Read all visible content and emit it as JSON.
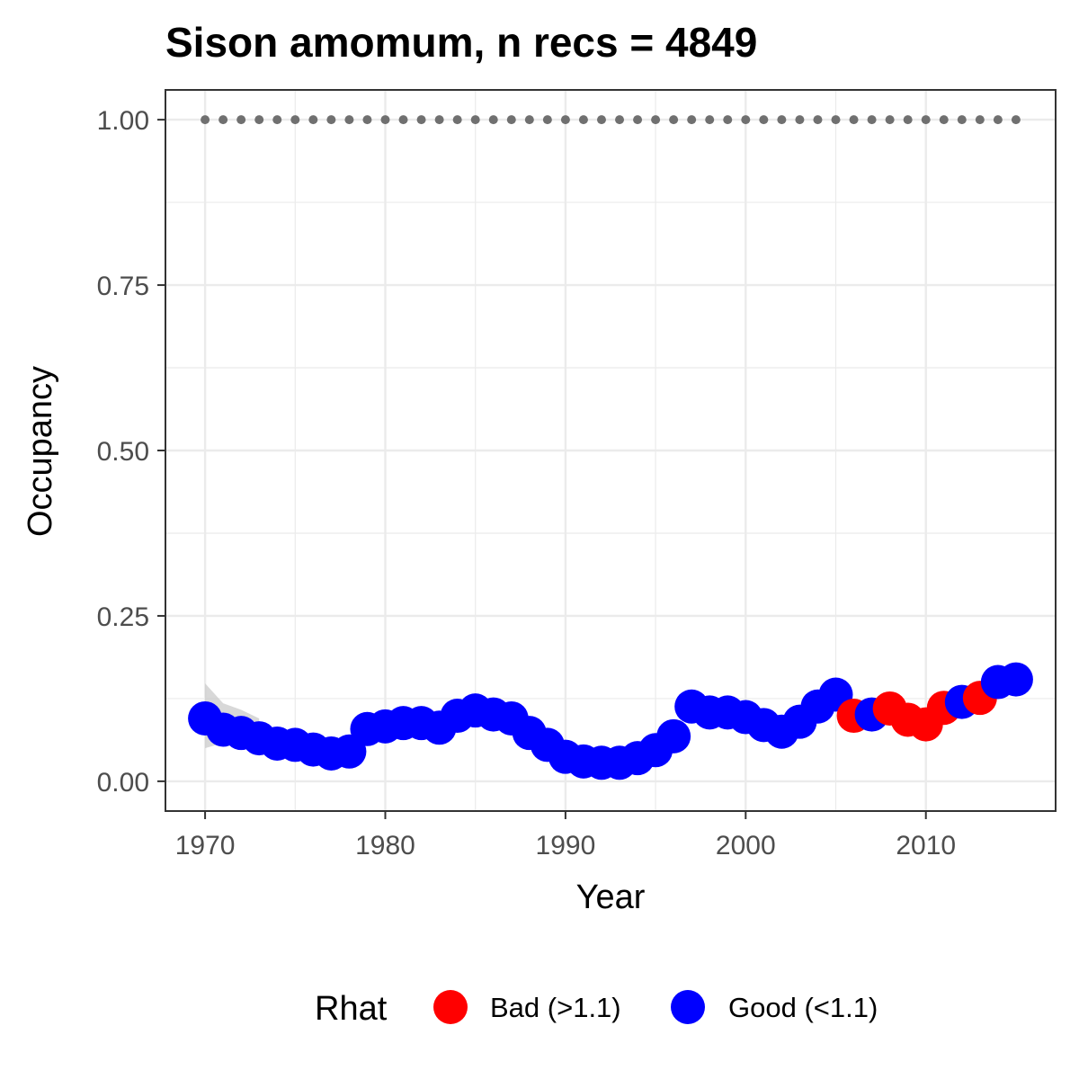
{
  "chart_data": {
    "type": "scatter",
    "title": "Sison amomum, n recs = 4849",
    "xlabel": "Year",
    "ylabel": "Occupancy",
    "xlim": [
      1967.8,
      2017.2
    ],
    "ylim": [
      -0.045,
      1.045
    ],
    "x_ticks": [
      1970,
      1980,
      1990,
      2000,
      2010
    ],
    "y_ticks": [
      0.0,
      0.25,
      0.5,
      0.75,
      1.0
    ],
    "y_tick_labels": [
      "0.00",
      "0.25",
      "0.50",
      "0.75",
      "1.00"
    ],
    "grid": true,
    "colors": {
      "bad": "#ff0000",
      "good": "#0000ff",
      "reference": "#707070",
      "ribbon": "#c8c8c8",
      "panel_border": "#333333",
      "grid": "#ebebeb"
    },
    "reference_line": {
      "y": 1.0,
      "style": "dotted",
      "x": [
        1970,
        1971,
        1972,
        1973,
        1974,
        1975,
        1976,
        1977,
        1978,
        1979,
        1980,
        1981,
        1982,
        1983,
        1984,
        1985,
        1986,
        1987,
        1988,
        1989,
        1990,
        1991,
        1992,
        1993,
        1994,
        1995,
        1996,
        1997,
        1998,
        1999,
        2000,
        2001,
        2002,
        2003,
        2004,
        2005,
        2006,
        2007,
        2008,
        2009,
        2010,
        2011,
        2012,
        2013,
        2014,
        2015
      ]
    },
    "ribbon": {
      "x": [
        1970,
        1971,
        1972,
        1973
      ],
      "lower": [
        0.05,
        0.058,
        0.062,
        0.063
      ],
      "upper": [
        0.148,
        0.118,
        0.108,
        0.095
      ]
    },
    "legend": {
      "title": "Rhat",
      "position": "bottom",
      "entries": [
        {
          "key": "bad",
          "label": "Bad (>1.1)"
        },
        {
          "key": "good",
          "label": "Good (<1.1)"
        }
      ]
    },
    "points": [
      {
        "x": 1970,
        "y": 0.095,
        "rhat": "good"
      },
      {
        "x": 1971,
        "y": 0.078,
        "rhat": "good"
      },
      {
        "x": 1972,
        "y": 0.073,
        "rhat": "good"
      },
      {
        "x": 1973,
        "y": 0.065,
        "rhat": "good"
      },
      {
        "x": 1974,
        "y": 0.057,
        "rhat": "good"
      },
      {
        "x": 1975,
        "y": 0.055,
        "rhat": "good"
      },
      {
        "x": 1976,
        "y": 0.048,
        "rhat": "good"
      },
      {
        "x": 1977,
        "y": 0.042,
        "rhat": "good"
      },
      {
        "x": 1978,
        "y": 0.045,
        "rhat": "good"
      },
      {
        "x": 1979,
        "y": 0.079,
        "rhat": "good"
      },
      {
        "x": 1980,
        "y": 0.083,
        "rhat": "good"
      },
      {
        "x": 1981,
        "y": 0.088,
        "rhat": "good"
      },
      {
        "x": 1982,
        "y": 0.088,
        "rhat": "good"
      },
      {
        "x": 1983,
        "y": 0.081,
        "rhat": "good"
      },
      {
        "x": 1984,
        "y": 0.099,
        "rhat": "good"
      },
      {
        "x": 1985,
        "y": 0.107,
        "rhat": "good"
      },
      {
        "x": 1986,
        "y": 0.101,
        "rhat": "good"
      },
      {
        "x": 1987,
        "y": 0.095,
        "rhat": "good"
      },
      {
        "x": 1988,
        "y": 0.073,
        "rhat": "good"
      },
      {
        "x": 1989,
        "y": 0.055,
        "rhat": "good"
      },
      {
        "x": 1990,
        "y": 0.037,
        "rhat": "good"
      },
      {
        "x": 1991,
        "y": 0.03,
        "rhat": "good"
      },
      {
        "x": 1992,
        "y": 0.028,
        "rhat": "good"
      },
      {
        "x": 1993,
        "y": 0.028,
        "rhat": "good"
      },
      {
        "x": 1994,
        "y": 0.035,
        "rhat": "good"
      },
      {
        "x": 1995,
        "y": 0.047,
        "rhat": "good"
      },
      {
        "x": 1996,
        "y": 0.068,
        "rhat": "good"
      },
      {
        "x": 1997,
        "y": 0.113,
        "rhat": "good"
      },
      {
        "x": 1998,
        "y": 0.104,
        "rhat": "good"
      },
      {
        "x": 1999,
        "y": 0.104,
        "rhat": "good"
      },
      {
        "x": 2000,
        "y": 0.097,
        "rhat": "good"
      },
      {
        "x": 2001,
        "y": 0.085,
        "rhat": "good"
      },
      {
        "x": 2002,
        "y": 0.075,
        "rhat": "good"
      },
      {
        "x": 2003,
        "y": 0.09,
        "rhat": "good"
      },
      {
        "x": 2004,
        "y": 0.113,
        "rhat": "good"
      },
      {
        "x": 2005,
        "y": 0.131,
        "rhat": "good"
      },
      {
        "x": 2006,
        "y": 0.099,
        "rhat": "bad"
      },
      {
        "x": 2007,
        "y": 0.101,
        "rhat": "good"
      },
      {
        "x": 2008,
        "y": 0.11,
        "rhat": "bad"
      },
      {
        "x": 2009,
        "y": 0.093,
        "rhat": "bad"
      },
      {
        "x": 2010,
        "y": 0.086,
        "rhat": "bad"
      },
      {
        "x": 2011,
        "y": 0.111,
        "rhat": "bad"
      },
      {
        "x": 2012,
        "y": 0.12,
        "rhat": "good"
      },
      {
        "x": 2013,
        "y": 0.126,
        "rhat": "bad"
      },
      {
        "x": 2014,
        "y": 0.15,
        "rhat": "good"
      },
      {
        "x": 2015,
        "y": 0.154,
        "rhat": "good"
      }
    ]
  }
}
